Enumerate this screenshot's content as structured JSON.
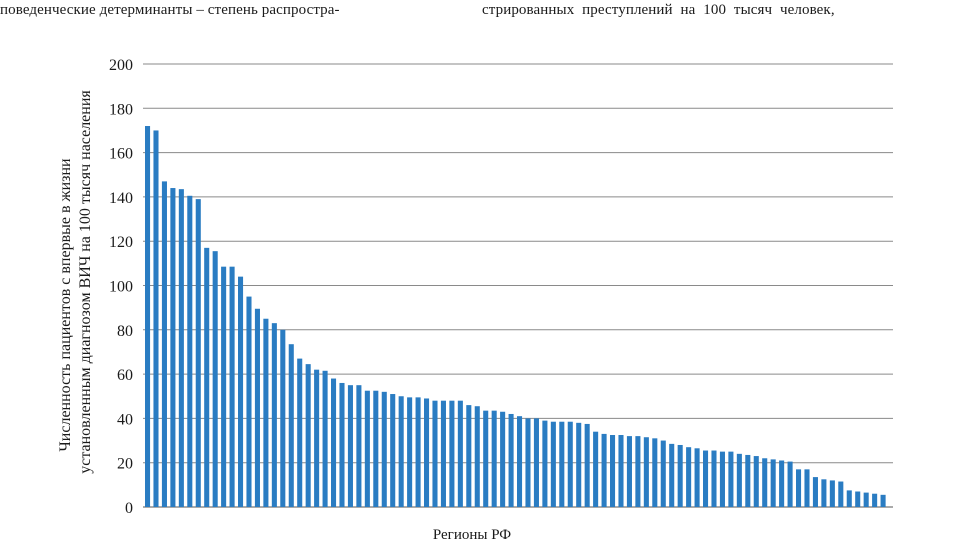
{
  "header": {
    "left_text": "поведенческие детерминанты – степень распростра-",
    "right_text": "стрированных преступлений на 100 тысяч человек,"
  },
  "chart_data": {
    "type": "bar",
    "title": "",
    "xlabel": "Регионы РФ",
    "ylabel_lines": [
      "Численность пациентов с впервые в жизни",
      "установленным диагнозом ВИЧ на 100 тысяч населения"
    ],
    "ylim": [
      0,
      200
    ],
    "yticks": [
      0,
      20,
      40,
      60,
      80,
      100,
      120,
      140,
      160,
      180,
      200
    ],
    "grid": true,
    "legend": "none",
    "bar_color": "#2a7cc2",
    "values": [
      172,
      170,
      147,
      144,
      143.5,
      140.5,
      139,
      117,
      115.5,
      108.5,
      108.5,
      104,
      95,
      89.5,
      85,
      83,
      80,
      73.5,
      67,
      64.5,
      62,
      61.5,
      58,
      56,
      55,
      55,
      52.5,
      52.5,
      52,
      51,
      50,
      49.5,
      49.5,
      49,
      48,
      48,
      48,
      48,
      46,
      45.5,
      43.5,
      43.5,
      43,
      42,
      41,
      40,
      40,
      39,
      38.5,
      38.5,
      38.5,
      38,
      37.5,
      34,
      33,
      32.5,
      32.5,
      32,
      32,
      31.5,
      31,
      30,
      28.5,
      28,
      27,
      26.5,
      25.5,
      25.5,
      25,
      25,
      24,
      23.5,
      23,
      22,
      21.5,
      21,
      20.5,
      17,
      17,
      13.5,
      12.5,
      12,
      11.5,
      7.5,
      7,
      6.5,
      6,
      5.5
    ]
  }
}
